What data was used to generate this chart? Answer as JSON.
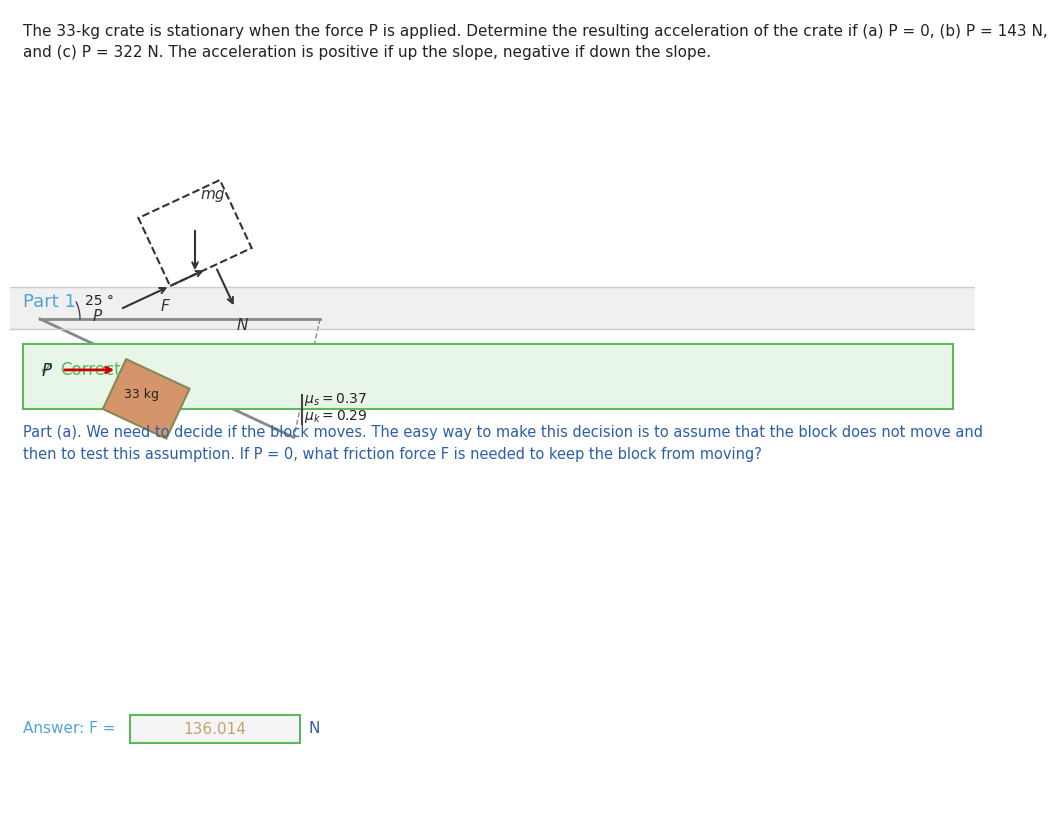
{
  "title_text": "The 33-kg crate is stationary when the force P is applied. Determine the resulting acceleration of the crate if (a) P = 0, (b) P = 143 N,\nand (c) P = 322 N. The acceleration is positive if up the slope, negative if down the slope.",
  "mu_s": "0.37",
  "mu_k": "0.29",
  "mass": "33 kg",
  "angle": "25",
  "part1_label": "Part 1",
  "correct_text": "Correct",
  "part_a_text": "Part (a). We need to decide if the block moves. The easy way to make this decision is to assume that the block does not move and\nthen to test this assumption. If P = 0, what friction force F is needed to keep the block from moving?",
  "answer_label": "Answer: F =",
  "answer_value": "136.014",
  "answer_unit": "N",
  "bg_color": "#ffffff",
  "header_bg": "#f5f5f5",
  "part1_color": "#4da6d4",
  "correct_green_bg": "#e8f5e9",
  "correct_green_border": "#5cb85c",
  "correct_green_text": "#5cb85c",
  "body_text_color": "#2c5fa8",
  "answer_box_bg": "#f5f5f5",
  "answer_box_border": "#5cb85c",
  "answer_text_color": "#c8a06e",
  "divider_color": "#cccccc",
  "slope_color": "#c8a06e",
  "crate_color": "#d4956a",
  "arrow_color": "#cc0000"
}
